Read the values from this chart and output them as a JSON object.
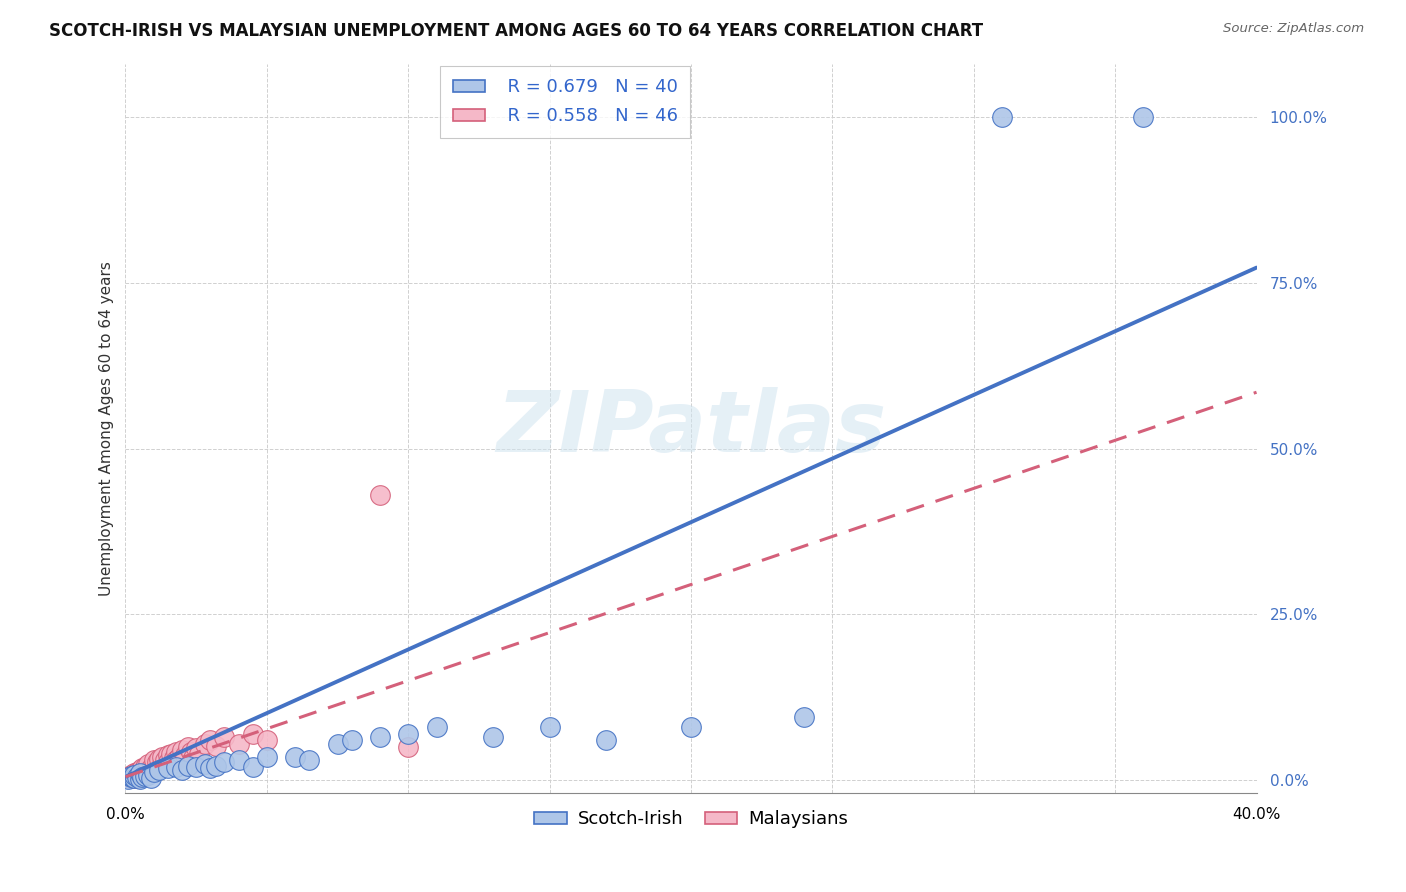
{
  "title": "SCOTCH-IRISH VS MALAYSIAN UNEMPLOYMENT AMONG AGES 60 TO 64 YEARS CORRELATION CHART",
  "source": "Source: ZipAtlas.com",
  "ylabel": "Unemployment Among Ages 60 to 64 years",
  "xlim": [
    0.0,
    0.4
  ],
  "ylim": [
    -0.02,
    1.08
  ],
  "ytick_values": [
    0.0,
    0.25,
    0.5,
    0.75,
    1.0
  ],
  "scotch_irish_R": 0.679,
  "scotch_irish_N": 40,
  "malaysian_R": 0.558,
  "malaysian_N": 46,
  "scotch_irish_color": "#aec6e8",
  "scotch_irish_line_color": "#4472c4",
  "malaysian_color": "#f5b8c8",
  "malaysian_line_color": "#d4607a",
  "watermark_text": "ZIPatlas",
  "scotch_irish_scatter": [
    [
      0.001,
      0.002
    ],
    [
      0.002,
      0.004
    ],
    [
      0.002,
      0.006
    ],
    [
      0.003,
      0.003
    ],
    [
      0.003,
      0.008
    ],
    [
      0.004,
      0.005
    ],
    [
      0.005,
      0.002
    ],
    [
      0.005,
      0.01
    ],
    [
      0.006,
      0.004
    ],
    [
      0.007,
      0.006
    ],
    [
      0.008,
      0.008
    ],
    [
      0.009,
      0.003
    ],
    [
      0.01,
      0.012
    ],
    [
      0.012,
      0.015
    ],
    [
      0.015,
      0.018
    ],
    [
      0.018,
      0.02
    ],
    [
      0.02,
      0.015
    ],
    [
      0.022,
      0.022
    ],
    [
      0.025,
      0.02
    ],
    [
      0.028,
      0.025
    ],
    [
      0.03,
      0.018
    ],
    [
      0.032,
      0.022
    ],
    [
      0.035,
      0.028
    ],
    [
      0.04,
      0.03
    ],
    [
      0.045,
      0.02
    ],
    [
      0.05,
      0.035
    ],
    [
      0.06,
      0.035
    ],
    [
      0.065,
      0.03
    ],
    [
      0.075,
      0.055
    ],
    [
      0.08,
      0.06
    ],
    [
      0.09,
      0.065
    ],
    [
      0.1,
      0.07
    ],
    [
      0.11,
      0.08
    ],
    [
      0.13,
      0.065
    ],
    [
      0.15,
      0.08
    ],
    [
      0.17,
      0.06
    ],
    [
      0.2,
      0.08
    ],
    [
      0.24,
      0.095
    ],
    [
      0.31,
      1.0
    ],
    [
      0.36,
      1.0
    ]
  ],
  "malaysian_scatter": [
    [
      0.001,
      0.005
    ],
    [
      0.002,
      0.003
    ],
    [
      0.002,
      0.008
    ],
    [
      0.003,
      0.005
    ],
    [
      0.003,
      0.01
    ],
    [
      0.004,
      0.003
    ],
    [
      0.004,
      0.012
    ],
    [
      0.005,
      0.008
    ],
    [
      0.005,
      0.015
    ],
    [
      0.006,
      0.01
    ],
    [
      0.006,
      0.018
    ],
    [
      0.007,
      0.012
    ],
    [
      0.007,
      0.02
    ],
    [
      0.008,
      0.015
    ],
    [
      0.008,
      0.025
    ],
    [
      0.009,
      0.018
    ],
    [
      0.01,
      0.022
    ],
    [
      0.01,
      0.03
    ],
    [
      0.011,
      0.028
    ],
    [
      0.012,
      0.032
    ],
    [
      0.013,
      0.025
    ],
    [
      0.013,
      0.035
    ],
    [
      0.014,
      0.03
    ],
    [
      0.015,
      0.038
    ],
    [
      0.015,
      0.028
    ],
    [
      0.016,
      0.04
    ],
    [
      0.017,
      0.033
    ],
    [
      0.018,
      0.042
    ],
    [
      0.018,
      0.03
    ],
    [
      0.019,
      0.035
    ],
    [
      0.02,
      0.045
    ],
    [
      0.021,
      0.038
    ],
    [
      0.022,
      0.05
    ],
    [
      0.023,
      0.042
    ],
    [
      0.024,
      0.033
    ],
    [
      0.025,
      0.048
    ],
    [
      0.026,
      0.04
    ],
    [
      0.028,
      0.055
    ],
    [
      0.03,
      0.06
    ],
    [
      0.032,
      0.052
    ],
    [
      0.035,
      0.065
    ],
    [
      0.04,
      0.055
    ],
    [
      0.045,
      0.07
    ],
    [
      0.05,
      0.06
    ],
    [
      0.09,
      0.43
    ],
    [
      0.1,
      0.05
    ]
  ],
  "grid_color": "#d0d0d0",
  "background_color": "#ffffff",
  "title_fontsize": 12,
  "label_fontsize": 11,
  "tick_fontsize": 11,
  "legend_fontsize": 13,
  "si_line_slope": 1.92,
  "si_line_intercept": 0.005,
  "ml_line_slope": 1.45,
  "ml_line_intercept": 0.005
}
